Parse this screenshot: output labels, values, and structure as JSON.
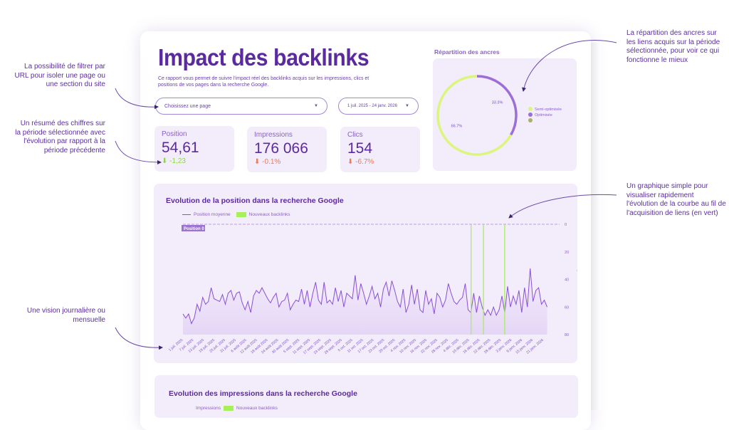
{
  "header": {
    "title": "Impact des backlinks",
    "subtitle": "Ce rapport vous permet de suivre l'impact réel des backlinks acquis sur les impressions, clics et positions de vos pages dans la recherche Google."
  },
  "filters": {
    "page_placeholder": "Choisissez une page",
    "date_range": "1 juil. 2025 - 24 janv. 2026"
  },
  "kpis": [
    {
      "label": "Position",
      "value": "54,61",
      "delta": "-1,23",
      "trend": "good"
    },
    {
      "label": "Impressions",
      "value": "176 066",
      "delta": "-0.1%",
      "trend": "bad"
    },
    {
      "label": "Clics",
      "value": "154",
      "delta": "-6.7%",
      "trend": "bad"
    }
  ],
  "anchors": {
    "title": "Répartition des ancres"
  },
  "position_chart": {
    "title": "Evolution de la position dans la recherche Google"
  },
  "impressions_chart": {
    "title": "Evolution des impressions dans la recherche Google",
    "legend": [
      "Impressions",
      "Nouveaux backlinks"
    ]
  },
  "annotations": [
    "La possibilité de filtrer par URL pour isoler une page ou une section du site",
    "Un résumé des chiffres sur la période sélectionnée avec l'évolution par rapport à la période précédente",
    "Une vision journalière ou mensuelle",
    "La répartition des ancres sur les liens acquis sur la période sélectionnée, pour voir ce qui fonctionne le mieux",
    "Un graphique simple pour visualiser rapidement l'évolution de la courbe au fil de l'acquisition de liens (en vert)"
  ],
  "colors": {
    "accent": "#5b2aa0",
    "line": "#8a4fd8",
    "backlink": "#a6f05a",
    "semi": "#dcf57c",
    "opti": "#9b6fd6",
    "other": "#a8b06a",
    "card": "#f3ecfb"
  },
  "chart_data": [
    {
      "type": "pie",
      "title": "Répartition des ancres",
      "donut": true,
      "slices": [
        {
          "name": "Semi-optimisée",
          "value": 66.7,
          "label": "66.7%",
          "color": "#dcf57c"
        },
        {
          "name": "Optimisée",
          "value": 33.3,
          "label": "33.3%",
          "color": "#9b6fd6"
        },
        {
          "name": "",
          "value": 0,
          "color": "#a8b06a"
        }
      ],
      "legend": "right"
    },
    {
      "type": "line",
      "title": "Evolution de la position dans la recherche Google",
      "series": [
        {
          "name": "Position moyenne",
          "values": [
            65,
            68,
            65,
            72,
            68,
            58,
            63,
            53,
            58,
            56,
            46,
            54,
            55,
            56,
            51,
            58,
            50,
            48,
            55,
            50,
            49,
            57,
            62,
            56,
            64,
            52,
            48,
            50,
            46,
            50,
            54,
            57,
            53,
            50,
            60,
            56,
            55,
            50,
            62,
            58,
            55,
            56,
            47,
            58,
            48,
            60,
            50,
            42,
            55,
            58,
            42,
            57,
            55,
            58,
            46,
            56,
            48,
            60,
            50,
            52,
            54,
            37,
            55,
            43,
            50,
            58,
            52,
            45,
            54,
            50,
            60,
            47,
            42,
            52,
            41,
            48,
            56,
            60,
            47,
            64,
            58,
            44,
            58,
            47,
            62,
            64,
            48,
            58,
            54,
            65,
            50,
            53,
            60,
            55,
            43,
            50,
            56,
            58,
            55,
            53,
            43,
            62,
            64,
            50,
            64,
            52,
            60,
            66,
            62,
            66,
            60,
            66,
            62,
            52,
            64,
            45,
            60,
            52,
            58,
            48,
            64,
            46,
            60,
            32,
            56,
            48,
            46,
            58,
            55,
            60
          ]
        }
      ],
      "backlinks": {
        "name": "Nouveaux backlinks",
        "dates": [
          "2025-12-11",
          "2025-12-18",
          "2025-12-30"
        ]
      },
      "reference_line": {
        "label": "Position 0",
        "value": 0
      },
      "xlim": [
        "2025-07-01",
        "2026-01-24"
      ],
      "x_ticks": [
        "1 juil. 2025",
        "7 juil. 2025",
        "13 juil. 2025",
        "19 juil. 2025",
        "25 juil. 2025",
        "31 juil. 2025",
        "6 août 2025",
        "12 août 2025",
        "18 août 2025",
        "24 août 2025",
        "30 août 2025",
        "5 sept. 2025",
        "11 sept. 2025",
        "17 sept. 2025",
        "23 sept. 2025",
        "29 sept. 2025",
        "5 oct. 2025",
        "11 oct. 2025",
        "17 oct. 2025",
        "23 oct. 2025",
        "29 oct. 2025",
        "4 nov. 2025",
        "10 nov. 2025",
        "16 nov. 2025",
        "22 nov. 2025",
        "28 nov. 2025",
        "4 déc. 2025",
        "10 déc. 2025",
        "16 déc. 2025",
        "22 déc. 2025",
        "28 déc. 2025",
        "3 janv. 2026",
        "9 janv. 2026",
        "15 janv. 2026",
        "21 janv. 2026"
      ],
      "ylabel": "Position moyenne",
      "ylim": [
        0,
        80
      ],
      "y_reversed": true,
      "y_ticks": [
        0,
        20,
        40,
        60,
        80
      ],
      "legend": "top-left"
    }
  ]
}
